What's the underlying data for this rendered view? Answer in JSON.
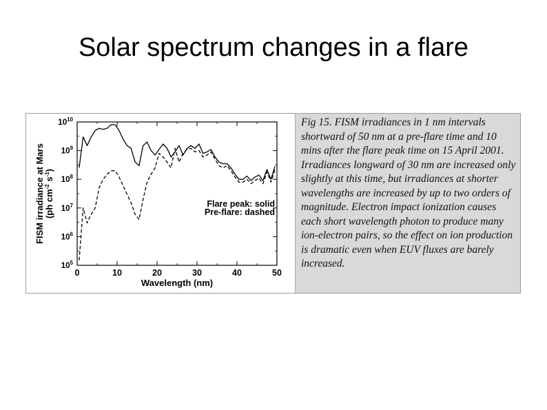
{
  "slide": {
    "title": "Solar spectrum changes in a flare"
  },
  "caption": "Fig 15. FISM irradiances in 1 nm intervals shortward of 50 nm at a pre-flare time and 10 mins after the flare peak time on 15 April 2001. Irradiances longward of 30 nm are increased only slightly at this time, but irradiances at shorter wavelengths are increased by up to two orders of magnitude. Electron impact ionization causes each short wavelength photon to produce many ion-electron pairs, so the effect on ion production is dramatic even when EUV fluxes are barely increased.",
  "chart_data": {
    "type": "line",
    "title": "",
    "xlabel": "Wavelength (nm)",
    "ylabel": "FISM irradiance at Mars (ph cm-2 s-1)",
    "ylabel_line1": "FISM irradiance at Mars",
    "ylabel_line2_parts": [
      "(ph cm",
      "-2",
      " s",
      "-1",
      ")"
    ],
    "xlim": [
      0,
      50
    ],
    "ylim": [
      100000,
      10000000000
    ],
    "yscale": "log",
    "xticks": [
      0,
      10,
      20,
      30,
      40,
      50
    ],
    "yticks": [
      {
        "value": 100000,
        "base": "10",
        "exp": "5"
      },
      {
        "value": 1000000,
        "base": "10",
        "exp": "6"
      },
      {
        "value": 10000000,
        "base": "10",
        "exp": "7"
      },
      {
        "value": 100000000,
        "base": "10",
        "exp": "8"
      },
      {
        "value": 1000000000,
        "base": "10",
        "exp": "9"
      },
      {
        "value": 10000000000,
        "base": "10",
        "exp": "10"
      }
    ],
    "legend_lines": [
      "Flare peak: solid",
      "Pre-flare: dashed"
    ],
    "legend_position": "lower-right",
    "grid": false,
    "series": [
      {
        "style": "solid",
        "x": [
          0.5,
          1.5,
          2.5,
          3.5,
          4.5,
          5.5,
          6.5,
          7.5,
          8.5,
          9.5,
          10.5,
          11.5,
          12.5,
          13.5,
          14.5,
          15.5,
          16.5,
          17.5,
          18.5,
          19.5,
          20.5,
          21.5,
          22.5,
          23.5,
          24.5,
          25.5,
          26.5,
          27.5,
          28.5,
          29.5,
          30.5,
          31.5,
          32.5,
          33.5,
          34.5,
          35.5,
          36.5,
          37.5,
          38.5,
          39.5,
          40.5,
          41.5,
          42.5,
          43.5,
          44.5,
          45.5,
          46.5,
          47.5,
          48.5,
          49.5
        ],
        "y": [
          250000000.0,
          3000000000.0,
          1500000000.0,
          3000000000.0,
          5000000000.0,
          6000000000.0,
          5500000000.0,
          6000000000.0,
          8000000000.0,
          8000000000.0,
          5000000000.0,
          2500000000.0,
          1500000000.0,
          1200000000.0,
          400000000.0,
          300000000.0,
          1500000000.0,
          2000000000.0,
          1000000000.0,
          700000000.0,
          1100000000.0,
          1700000000.0,
          1200000000.0,
          600000000.0,
          900000000.0,
          1500000000.0,
          700000000.0,
          1200000000.0,
          1500000000.0,
          1200000000.0,
          1700000000.0,
          800000000.0,
          900000000.0,
          1100000000.0,
          600000000.0,
          400000000.0,
          350000000.0,
          350000000.0,
          250000000.0,
          150000000.0,
          100000000.0,
          100000000.0,
          130000000.0,
          90000000.0,
          120000000.0,
          140000000.0,
          90000000.0,
          220000000.0,
          100000000.0,
          280000000.0
        ]
      },
      {
        "style": "dashed",
        "x": [
          0.5,
          1.5,
          2.5,
          3.5,
          4.5,
          5.5,
          6.5,
          7.5,
          8.5,
          9.5,
          10.5,
          11.5,
          12.5,
          13.5,
          14.5,
          15.5,
          16.5,
          17.5,
          18.5,
          19.5,
          20.5,
          21.5,
          22.5,
          23.5,
          24.5,
          25.5,
          26.5,
          27.5,
          28.5,
          29.5,
          30.5,
          31.5,
          32.5,
          33.5,
          34.5,
          35.5,
          36.5,
          37.5,
          38.5,
          39.5,
          40.5,
          41.5,
          42.5,
          43.5,
          44.5,
          45.5,
          46.5,
          47.5,
          48.5,
          49.5
        ],
        "y": [
          150000,
          10000000.0,
          3000000.0,
          6000000.0,
          10000000.0,
          50000000.0,
          100000000.0,
          150000000.0,
          200000000.0,
          200000000.0,
          120000000.0,
          60000000.0,
          30000000.0,
          15000000.0,
          6000000.0,
          4000000.0,
          20000000.0,
          80000000.0,
          150000000.0,
          250000000.0,
          800000000.0,
          600000000.0,
          400000000.0,
          250000000.0,
          1200000000.0,
          400000000.0,
          800000000.0,
          1100000000.0,
          1200000000.0,
          900000000.0,
          1000000000.0,
          600000000.0,
          700000000.0,
          900000000.0,
          500000000.0,
          300000000.0,
          250000000.0,
          300000000.0,
          200000000.0,
          120000000.0,
          80000000.0,
          80000000.0,
          100000000.0,
          70000000.0,
          90000000.0,
          110000000.0,
          70000000.0,
          180000000.0,
          80000000.0,
          220000000.0
        ]
      }
    ]
  }
}
